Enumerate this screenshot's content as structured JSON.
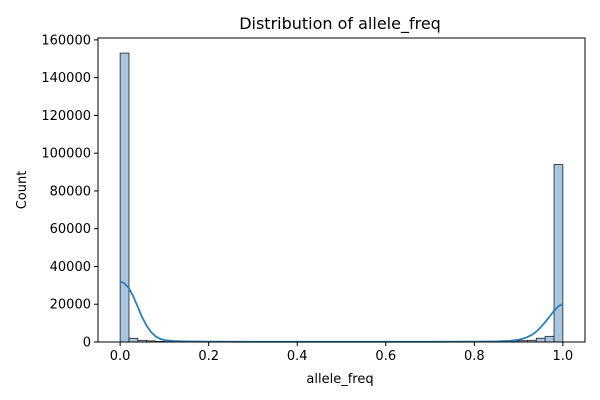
{
  "chart_data": {
    "type": "histogram",
    "title": "Distribution of allele_freq",
    "xlabel": "allele_freq",
    "ylabel": "Count",
    "xlim": [
      -0.05,
      1.05
    ],
    "ylim": [
      0,
      161000
    ],
    "xticks": [
      0.0,
      0.2,
      0.4,
      0.6,
      0.8,
      1.0
    ],
    "xtick_labels": [
      "0.0",
      "0.2",
      "0.4",
      "0.6",
      "0.8",
      "1.0"
    ],
    "yticks": [
      0,
      20000,
      40000,
      60000,
      80000,
      100000,
      120000,
      140000,
      160000
    ],
    "ytick_labels": [
      "0",
      "20000",
      "40000",
      "60000",
      "80000",
      "100000",
      "120000",
      "140000",
      "160000"
    ],
    "bins": {
      "start": 0.0,
      "width": 0.02,
      "counts": [
        153000,
        2000,
        900,
        600,
        300,
        200,
        150,
        120,
        100,
        90,
        80,
        70,
        60,
        55,
        50,
        50,
        50,
        50,
        50,
        50,
        50,
        50,
        50,
        50,
        50,
        50,
        50,
        50,
        50,
        50,
        50,
        55,
        60,
        70,
        80,
        90,
        100,
        120,
        150,
        200,
        250,
        300,
        400,
        500,
        600,
        700,
        900,
        2000,
        3000,
        94000
      ]
    },
    "kde": {
      "x": [
        0.0,
        0.01,
        0.02,
        0.03,
        0.04,
        0.05,
        0.06,
        0.07,
        0.08,
        0.09,
        0.1,
        0.12,
        0.15,
        0.2,
        0.3,
        0.4,
        0.5,
        0.6,
        0.7,
        0.8,
        0.85,
        0.88,
        0.9,
        0.91,
        0.92,
        0.93,
        0.94,
        0.95,
        0.96,
        0.97,
        0.98,
        0.99,
        1.0
      ],
      "y": [
        32000,
        31000,
        28500,
        24000,
        18500,
        13000,
        8500,
        5200,
        3000,
        1700,
        1000,
        500,
        300,
        200,
        150,
        150,
        150,
        150,
        150,
        200,
        300,
        600,
        1200,
        1800,
        2600,
        3800,
        5500,
        7800,
        10500,
        13500,
        16500,
        19000,
        20000
      ]
    },
    "colors": {
      "bar_fill": "#a8c6df",
      "bar_edge": "#222222",
      "kde_line": "#2d7fb8"
    },
    "grid": false
  }
}
